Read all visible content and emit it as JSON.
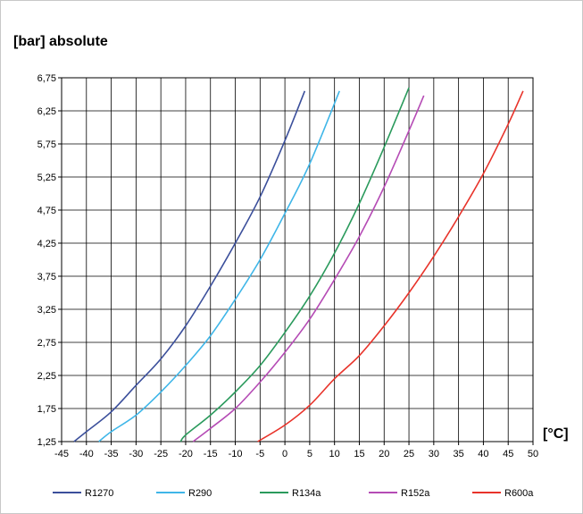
{
  "chart_data": {
    "type": "line",
    "title": "",
    "ylabel": "[bar] absolute",
    "xlabel": "[°C]",
    "xlim": [
      -45,
      50
    ],
    "ylim": [
      1.25,
      6.75
    ],
    "x_ticks": [
      -45,
      -40,
      -35,
      -30,
      -25,
      -20,
      -15,
      -10,
      -5,
      0,
      5,
      10,
      15,
      20,
      25,
      30,
      35,
      40,
      45,
      50
    ],
    "y_ticks": [
      1.25,
      1.75,
      2.25,
      2.75,
      3.25,
      3.75,
      4.25,
      4.75,
      5.25,
      5.75,
      6.25,
      6.75
    ],
    "x_tick_labels": [
      "-45",
      "-40",
      "-35",
      "-30",
      "-25",
      "-20",
      "-15",
      "-10",
      "-5",
      "0",
      "5",
      "10",
      "15",
      "20",
      "25",
      "30",
      "35",
      "40",
      "45",
      "50"
    ],
    "y_tick_labels": [
      "1,25",
      "1,75",
      "2,25",
      "2,75",
      "3,25",
      "3,75",
      "4,25",
      "4,75",
      "5,25",
      "5,75",
      "6,25",
      "6,75"
    ],
    "grid": true,
    "legend_position": "bottom",
    "series": [
      {
        "name": "R1270",
        "color": "#3b4f9b",
        "x": [
          -42.5,
          -40,
          -35,
          -30,
          -25,
          -20,
          -15,
          -10,
          -5,
          0,
          4
        ],
        "y": [
          1.25,
          1.4,
          1.7,
          2.1,
          2.5,
          3.0,
          3.6,
          4.25,
          4.95,
          5.8,
          6.55
        ]
      },
      {
        "name": "R290",
        "color": "#3fb6e8",
        "x": [
          -37.5,
          -35,
          -30,
          -25,
          -20,
          -15,
          -10,
          -5,
          0,
          5,
          11
        ],
        "y": [
          1.25,
          1.4,
          1.65,
          2.0,
          2.4,
          2.85,
          3.4,
          4.0,
          4.7,
          5.45,
          6.55
        ]
      },
      {
        "name": "R134a",
        "color": "#2a9a5c",
        "x": [
          -21,
          -20,
          -15,
          -10,
          -5,
          0,
          5,
          10,
          15,
          20,
          25
        ],
        "y": [
          1.25,
          1.35,
          1.65,
          2.0,
          2.4,
          2.9,
          3.45,
          4.1,
          4.85,
          5.7,
          6.6
        ]
      },
      {
        "name": "R152a",
        "color": "#b54bb5",
        "x": [
          -18.5,
          -15,
          -10,
          -5,
          0,
          5,
          10,
          15,
          20,
          25,
          28
        ],
        "y": [
          1.25,
          1.45,
          1.75,
          2.15,
          2.6,
          3.1,
          3.7,
          4.35,
          5.1,
          5.95,
          6.48
        ]
      },
      {
        "name": "R600a",
        "color": "#e8332a",
        "x": [
          -5.5,
          0,
          5,
          10,
          15,
          20,
          25,
          30,
          35,
          40,
          45,
          48
        ],
        "y": [
          1.25,
          1.5,
          1.8,
          2.2,
          2.55,
          3.0,
          3.5,
          4.05,
          4.65,
          5.3,
          6.05,
          6.55
        ]
      }
    ]
  }
}
